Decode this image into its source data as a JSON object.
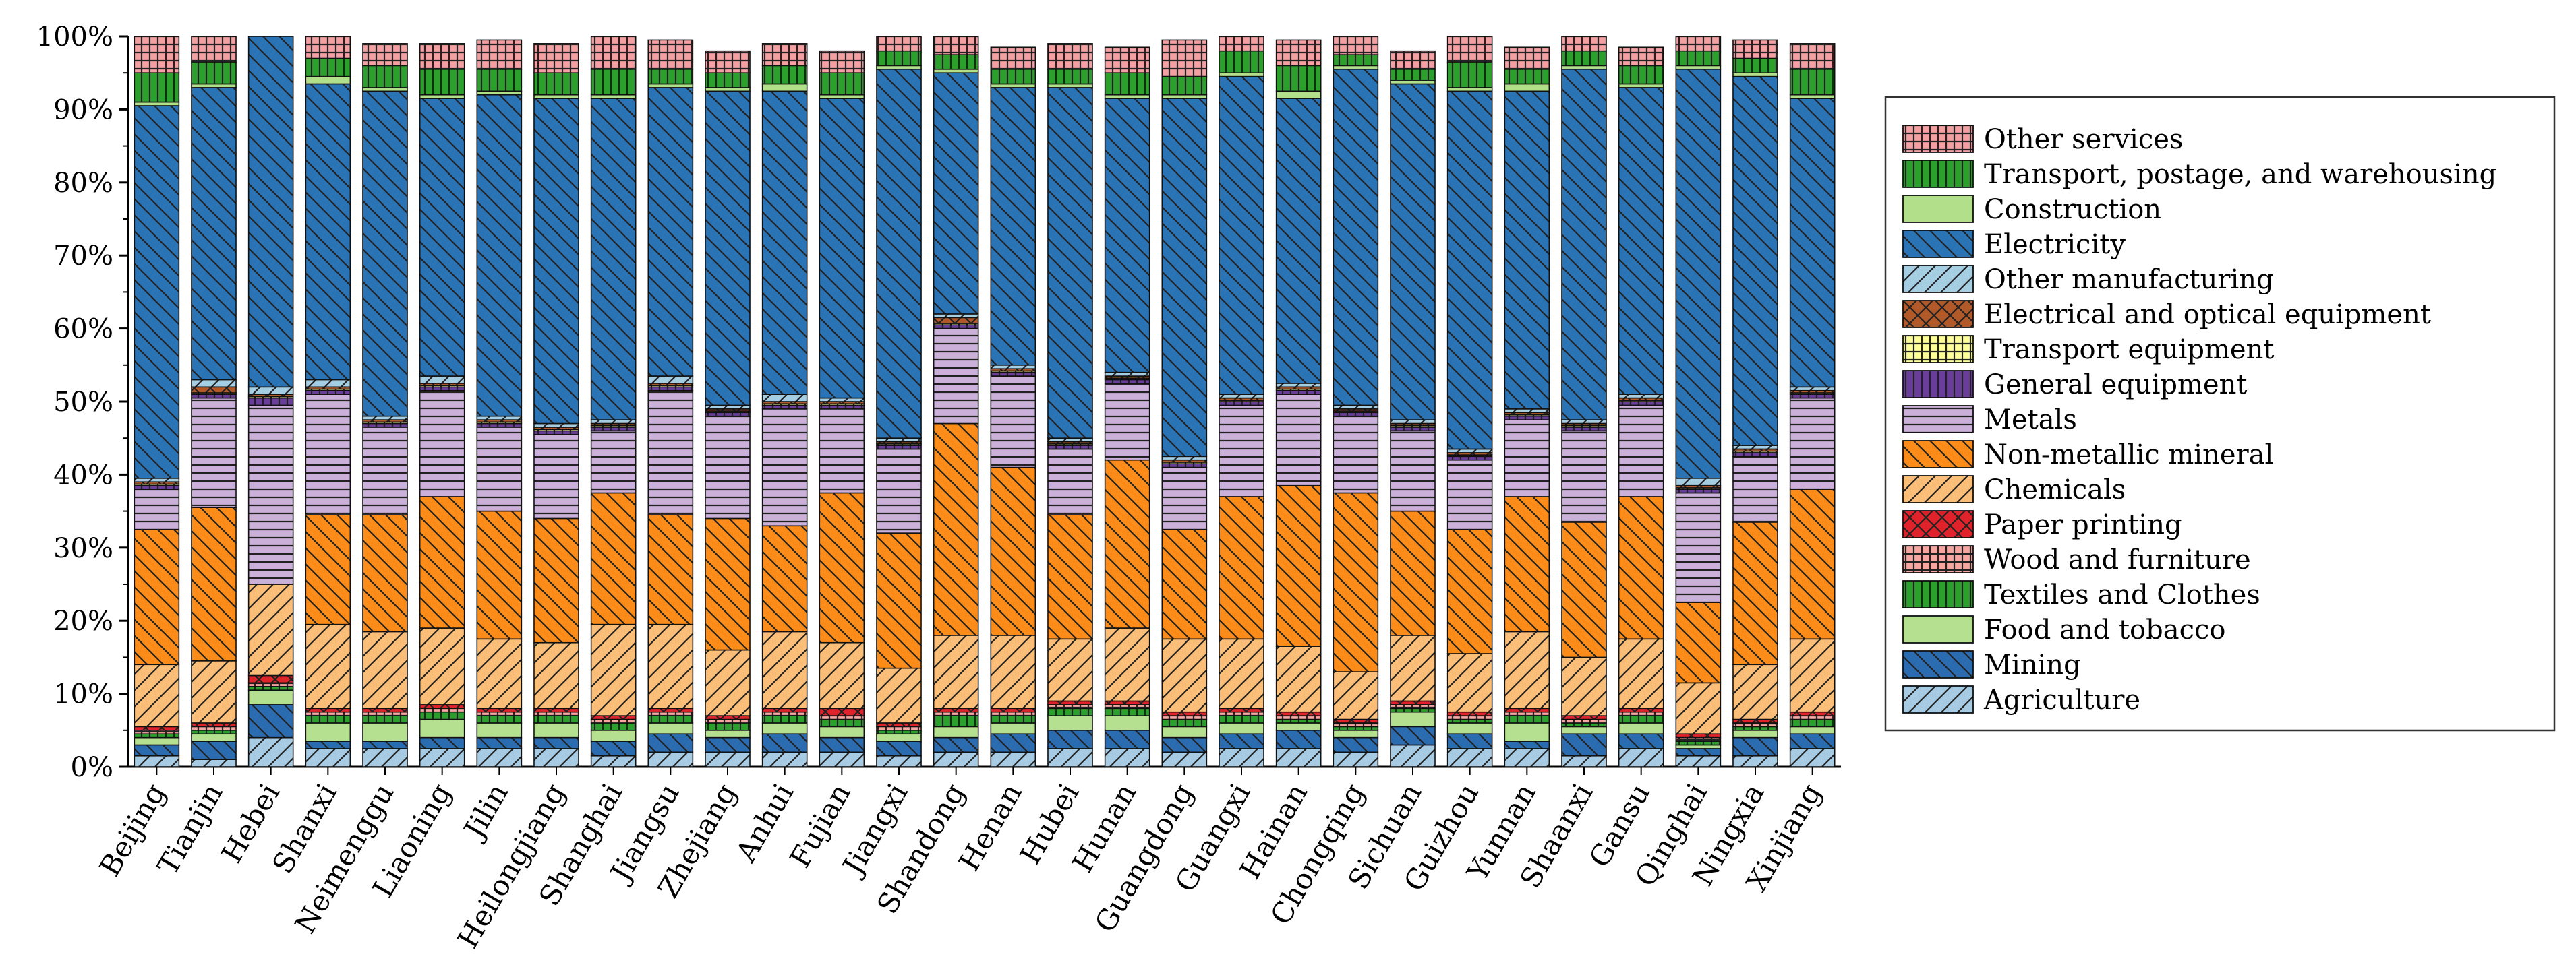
{
  "colors": {
    "Agriculture": "#a6cbe3",
    "Mining": "#2b6cb0",
    "Food and tobacco": "#b5e08f",
    "Textiles and Clothes": "#2ca02c",
    "Wood and furniture": "#f8a6a2",
    "Paper printing": "#e0232a",
    "Chemicals": "#fbbe78",
    "Non-metallic mineral": "#fb8c1a",
    "Metals": "#cbb0da",
    "General equipment": "#6a3d9a",
    "Transport equipment": "#ffff99",
    "Electrical and optical equipment": "#b15928",
    "Other manufacturing": "#a6cee3",
    "Electricity": "#2a73b5",
    "Construction": "#b2df8a",
    "Transport, postage, and warehousing": "#2ca02c",
    "Other services": "#f4a0a3"
  },
  "chart_data": {
    "type": "bar",
    "stacked": true,
    "ylim": [
      0,
      100
    ],
    "y_ticks": [
      "0%",
      "10%",
      "20%",
      "30%",
      "40%",
      "50%",
      "60%",
      "70%",
      "80%",
      "90%",
      "100%"
    ],
    "legend_position": "right",
    "categories": [
      "Beijing",
      "Tianjin",
      "Hebei",
      "Shanxi",
      "Neimenggu",
      "Liaoning",
      "Jilin",
      "Heilongjiang",
      "Shanghai",
      "Jiangsu",
      "Zhejiang",
      "Anhui",
      "Fujian",
      "Jiangxi",
      "Shandong",
      "Henan",
      "Hubei",
      "Hunan",
      "Guangdong",
      "Guangxi",
      "Hainan",
      "Chongqing",
      "Sichuan",
      "Guizhou",
      "Yunnan",
      "Shaanxi",
      "Gansu",
      "Qinghai",
      "Ningxia",
      "Xinjiang"
    ],
    "legend": [
      "Other services",
      "Transport, postage, and warehousing",
      "Construction",
      "Electricity",
      "Other manufacturing",
      "Electrical and optical equipment",
      "Transport equipment",
      "General equipment",
      "Metals",
      "Non-metallic mineral",
      "Chemicals",
      "Paper printing",
      "Wood and furniture",
      "Textiles and Clothes",
      "Food and tobacco",
      "Mining",
      "Agriculture"
    ],
    "series": [
      {
        "name": "Agriculture",
        "pattern": "slash",
        "values": [
          1.5,
          1,
          4,
          2.5,
          2.5,
          2.5,
          2.5,
          2.5,
          1.5,
          2,
          2,
          2,
          2,
          1.5,
          2,
          2,
          2.5,
          2.5,
          2,
          2.5,
          2.5,
          2,
          3,
          2.5,
          2.5,
          1.5,
          2.5,
          1.5,
          1.5,
          2.5
        ]
      },
      {
        "name": "Mining",
        "pattern": "back",
        "values": [
          1.5,
          2.5,
          4.5,
          1,
          1,
          1.5,
          1.5,
          1.5,
          2,
          2.5,
          2,
          2.5,
          2,
          2,
          2,
          2.5,
          2.5,
          2.5,
          2,
          2,
          2.5,
          2,
          2.5,
          2,
          1,
          3,
          2,
          1,
          2.5,
          2
        ]
      },
      {
        "name": "Food and tobacco",
        "pattern": "none",
        "values": [
          1,
          1,
          2,
          2.5,
          2.5,
          2.5,
          2,
          2,
          1.5,
          1.5,
          1,
          1.5,
          1.5,
          1,
          1.5,
          1.5,
          2,
          2,
          1.5,
          1.5,
          1,
          1,
          2,
          1.5,
          2.5,
          1,
          1.5,
          0.5,
          1,
          1
        ]
      },
      {
        "name": "Textiles and Clothes",
        "pattern": "vertical",
        "values": [
          0.5,
          0.5,
          0.5,
          1,
          1,
          1,
          1,
          1,
          1,
          1,
          1,
          1,
          1,
          0.5,
          1.5,
          1,
          1,
          1,
          1,
          1,
          0.5,
          0.5,
          0.5,
          0.5,
          1,
          0.5,
          1,
          0.5,
          0.5,
          1
        ]
      },
      {
        "name": "Wood and furniture",
        "pattern": "grid",
        "values": [
          0.5,
          0.5,
          0.5,
          0.5,
          0.5,
          0.5,
          0.5,
          0.5,
          0.5,
          0.5,
          0.5,
          0.5,
          0.5,
          0.5,
          0.5,
          0.5,
          0.5,
          0.5,
          0.5,
          0.5,
          0.5,
          0.5,
          0.5,
          0.5,
          0.5,
          0.5,
          0.5,
          0.5,
          0.5,
          0.5
        ]
      },
      {
        "name": "Paper printing",
        "pattern": "cross",
        "values": [
          0.5,
          0.5,
          1,
          0.5,
          0.5,
          0.5,
          0.5,
          0.5,
          0.5,
          0.5,
          0.5,
          0.5,
          1,
          0.5,
          0.5,
          0.5,
          0.5,
          0.5,
          0.5,
          0.5,
          0.5,
          0.5,
          0.5,
          0.5,
          0.5,
          0.5,
          0.5,
          0.5,
          0.5,
          0.5
        ]
      },
      {
        "name": "Chemicals",
        "pattern": "slash",
        "values": [
          8.5,
          8.5,
          12.5,
          11.5,
          10.5,
          10.5,
          9.5,
          9,
          12.5,
          11.5,
          9,
          10.5,
          9,
          7.5,
          10,
          10,
          8.5,
          10,
          10,
          9.5,
          9,
          6.5,
          9,
          8,
          10.5,
          8,
          9.5,
          7,
          7.5,
          10
        ]
      },
      {
        "name": "Non-metallic mineral",
        "pattern": "back",
        "values": [
          18.5,
          21,
          0,
          15,
          16,
          18,
          17.5,
          17,
          18,
          15,
          18,
          14.5,
          20.5,
          18.5,
          29,
          23,
          17,
          23,
          15,
          19.5,
          22,
          24.5,
          17,
          17,
          18.5,
          18.5,
          19.5,
          11,
          19.5,
          20.5
        ]
      },
      {
        "name": "Metals",
        "pattern": "horizontal",
        "values": [
          5.5,
          15,
          24.5,
          16.5,
          12,
          14.5,
          11.5,
          11.5,
          8.5,
          17,
          14,
          16,
          11.5,
          11.5,
          13,
          12.5,
          9,
          10.5,
          8.5,
          12.5,
          12.5,
          10.5,
          11,
          9.5,
          10.5,
          12.5,
          12.5,
          15,
          9,
          12.5
        ]
      },
      {
        "name": "General equipment",
        "pattern": "vertical",
        "values": [
          0.5,
          0.5,
          1,
          0.5,
          0.5,
          0.5,
          0.5,
          0.5,
          0.5,
          0.5,
          0.5,
          0.5,
          0.5,
          0.5,
          0.5,
          0.5,
          0.5,
          0.5,
          0.5,
          0.5,
          0.5,
          0.5,
          0.5,
          0.5,
          0.5,
          0.5,
          0.5,
          0.5,
          0.5,
          0.5
        ]
      },
      {
        "name": "Transport equipment",
        "pattern": "grid",
        "values": [
          0.2,
          0.2,
          0.2,
          0.2,
          0.2,
          0.2,
          0.2,
          0.2,
          0.2,
          0.2,
          0.2,
          0.2,
          0.2,
          0.2,
          0.2,
          0.2,
          0.2,
          0.2,
          0.2,
          0.2,
          0.2,
          0.2,
          0.2,
          0.2,
          0.2,
          0.2,
          0.2,
          0.2,
          0.2,
          0.2
        ]
      },
      {
        "name": "Electrical and optical equipment",
        "pattern": "cross",
        "values": [
          0.3,
          0.8,
          0.3,
          0.3,
          0.3,
          0.3,
          0.3,
          0.3,
          0.3,
          0.3,
          0.3,
          0.3,
          0.3,
          0.3,
          0.8,
          0.3,
          0.3,
          0.3,
          0.3,
          0.3,
          0.3,
          0.3,
          0.3,
          0.3,
          0.3,
          0.3,
          0.3,
          0.3,
          0.3,
          0.3
        ]
      },
      {
        "name": "Other manufacturing",
        "pattern": "slash",
        "values": [
          0.5,
          1,
          1,
          1,
          0.5,
          1,
          0.5,
          0.5,
          0.5,
          1,
          0.5,
          1,
          0.5,
          0.5,
          0.5,
          0.5,
          0.5,
          0.5,
          0.5,
          0.5,
          0.5,
          0.5,
          0.5,
          0.5,
          0.5,
          0.5,
          0.5,
          1,
          0.5,
          0.5
        ]
      },
      {
        "name": "Electricity",
        "pattern": "back",
        "values": [
          51,
          40,
          48,
          40.5,
          44.5,
          38,
          44,
          44.5,
          44,
          39.5,
          43,
          41.5,
          41,
          50.5,
          33,
          38,
          48,
          37.5,
          49,
          43.5,
          39,
          46,
          46,
          49,
          43.5,
          48,
          42,
          56,
          50.5,
          39.5
        ]
      },
      {
        "name": "Construction",
        "pattern": "none",
        "values": [
          0.5,
          0.5,
          0,
          1,
          0.5,
          0.5,
          0.5,
          0.5,
          0.5,
          0.5,
          0.5,
          1,
          0.5,
          0.5,
          0.5,
          0.5,
          0.5,
          0.5,
          0.5,
          0.5,
          1,
          0.5,
          0.5,
          0.5,
          1,
          0.5,
          0.5,
          0.5,
          0.5,
          0.5
        ]
      },
      {
        "name": "Transport, postage, and warehousing",
        "pattern": "vertical",
        "values": [
          4,
          3,
          0,
          2.5,
          3,
          3.5,
          3,
          3,
          3.5,
          2,
          2,
          2.5,
          3,
          2,
          2,
          2,
          2,
          3,
          2.5,
          3,
          3.5,
          1.5,
          1.5,
          3.5,
          2,
          2,
          2.5,
          2,
          2,
          3.5
        ]
      },
      {
        "name": "Other services",
        "pattern": "grid",
        "values": [
          6,
          3.5,
          0,
          3,
          3,
          3.5,
          4,
          4,
          5.5,
          4,
          3,
          3,
          3,
          2.5,
          2.5,
          3,
          3.5,
          3.5,
          5,
          3.5,
          3.5,
          2.5,
          2.5,
          3.5,
          3,
          2.5,
          2.5,
          2.5,
          2.5,
          3.5
        ]
      }
    ]
  }
}
